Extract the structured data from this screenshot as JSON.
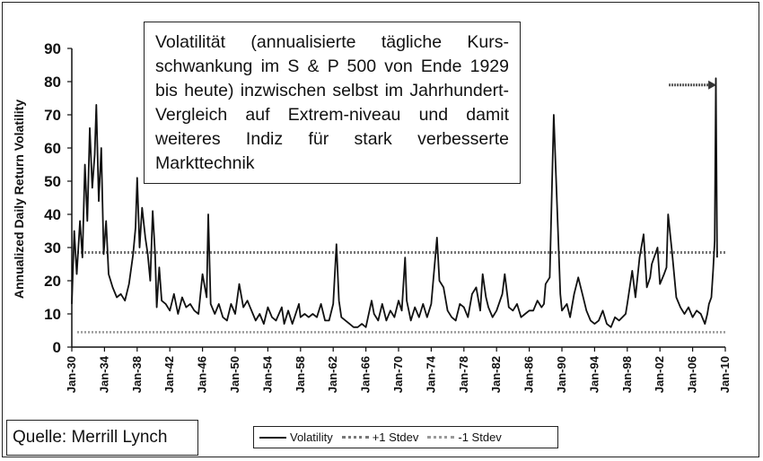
{
  "chart_data": {
    "type": "line",
    "ylabel": "Annualized Daily Return Volatility",
    "xlabel": "",
    "ylim": [
      0,
      90
    ],
    "yticks": [
      0,
      10,
      20,
      30,
      40,
      50,
      60,
      70,
      80,
      90
    ],
    "xlim": [
      1930,
      2010
    ],
    "xticks": [
      "Jan-30",
      "Jan-34",
      "Jan-38",
      "Jan-42",
      "Jan-46",
      "Jan-50",
      "Jan-54",
      "Jan-58",
      "Jan-62",
      "Jan-66",
      "Jan-70",
      "Jan-74",
      "Jan-78",
      "Jan-82",
      "Jan-86",
      "Jan-90",
      "Jan-94",
      "Jan-98",
      "Jan-02",
      "Jan-06",
      "Jan-10"
    ],
    "grid": false,
    "legend_position": "bottom",
    "series": [
      {
        "name": "Volatility",
        "color": "#111111",
        "x": [
          1930.0,
          1930.3,
          1930.6,
          1931.0,
          1931.3,
          1931.6,
          1931.9,
          1932.2,
          1932.5,
          1932.8,
          1933.0,
          1933.3,
          1933.6,
          1933.9,
          1934.2,
          1934.5,
          1935.0,
          1935.5,
          1936.0,
          1936.5,
          1937.0,
          1937.5,
          1937.8,
          1938.0,
          1938.3,
          1938.6,
          1939.0,
          1939.3,
          1939.6,
          1939.9,
          1940.2,
          1940.4,
          1940.7,
          1941.0,
          1941.5,
          1942.0,
          1942.5,
          1943.0,
          1943.5,
          1944.0,
          1944.5,
          1945.0,
          1945.5,
          1946.0,
          1946.5,
          1946.7,
          1947.0,
          1947.5,
          1948.0,
          1948.5,
          1949.0,
          1949.5,
          1950.0,
          1950.5,
          1951.0,
          1951.5,
          1952.0,
          1952.5,
          1953.0,
          1953.5,
          1954.0,
          1954.5,
          1955.0,
          1955.7,
          1956.0,
          1956.5,
          1957.0,
          1957.8,
          1958.0,
          1958.5,
          1959.0,
          1959.5,
          1960.0,
          1960.5,
          1961.0,
          1961.5,
          1962.0,
          1962.4,
          1962.7,
          1963.0,
          1963.5,
          1964.0,
          1964.5,
          1965.0,
          1965.5,
          1966.0,
          1966.7,
          1967.0,
          1967.5,
          1968.0,
          1968.5,
          1969.0,
          1969.5,
          1970.0,
          1970.4,
          1970.8,
          1971.0,
          1971.5,
          1972.0,
          1972.5,
          1973.0,
          1973.5,
          1974.0,
          1974.7,
          1975.0,
          1975.5,
          1976.0,
          1976.5,
          1977.0,
          1977.5,
          1978.0,
          1978.5,
          1979.0,
          1979.5,
          1980.0,
          1980.3,
          1980.7,
          1981.0,
          1981.5,
          1982.0,
          1982.7,
          1983.0,
          1983.5,
          1984.0,
          1984.5,
          1985.0,
          1985.5,
          1986.0,
          1986.5,
          1987.0,
          1987.5,
          1987.8,
          1988.0,
          1988.5,
          1989.0,
          1989.8,
          1990.0,
          1990.6,
          1991.0,
          1991.5,
          1992.0,
          1992.5,
          1993.0,
          1993.5,
          1994.0,
          1994.5,
          1995.0,
          1995.5,
          1996.0,
          1996.5,
          1997.0,
          1997.8,
          1998.0,
          1998.6,
          1999.0,
          1999.5,
          2000.0,
          2000.4,
          2000.8,
          2001.0,
          2001.7,
          2002.0,
          2002.5,
          2002.8,
          2003.0,
          2003.5,
          2004.0,
          2004.5,
          2005.0,
          2005.5,
          2006.0,
          2006.5,
          2007.0,
          2007.5,
          2007.8,
          2008.0,
          2008.3,
          2008.5,
          2008.7,
          2008.85,
          2009.0
        ],
        "values": [
          13,
          35,
          22,
          38,
          27,
          55,
          38,
          66,
          48,
          58,
          73,
          44,
          60,
          28,
          38,
          22,
          18,
          15,
          16,
          14,
          19,
          28,
          36,
          51,
          30,
          42,
          33,
          28,
          20,
          41,
          28,
          12,
          24,
          14,
          13,
          11,
          16,
          10,
          15,
          12,
          13,
          11,
          10,
          22,
          15,
          40,
          13,
          10,
          13,
          9,
          8,
          13,
          10,
          19,
          12,
          14,
          11,
          8,
          10,
          7,
          12,
          9,
          8,
          12,
          7,
          11,
          7,
          13,
          9,
          10,
          9,
          10,
          9,
          13,
          8,
          8,
          13,
          31,
          14,
          9,
          8,
          7,
          6,
          6,
          7,
          6,
          14,
          10,
          8,
          13,
          8,
          11,
          9,
          14,
          11,
          27,
          14,
          8,
          12,
          9,
          13,
          9,
          13,
          33,
          20,
          18,
          11,
          9,
          8,
          13,
          12,
          9,
          16,
          18,
          11,
          22,
          15,
          12,
          9,
          11,
          16,
          22,
          12,
          11,
          13,
          9,
          10,
          11,
          11,
          14,
          12,
          13,
          19,
          21,
          70,
          16,
          11,
          13,
          9,
          16,
          21,
          16,
          11,
          8,
          7,
          8,
          11,
          7,
          6,
          9,
          8,
          10,
          13,
          23,
          15,
          27,
          34,
          18,
          21,
          25,
          30,
          19,
          22,
          24,
          40,
          28,
          15,
          12,
          10,
          12,
          9,
          11,
          10,
          7,
          10,
          13,
          15,
          23,
          32,
          81,
          27
        ]
      },
      {
        "name": "+1 Stdev",
        "color": "#777777",
        "value": 28.5
      },
      {
        "name": "-1 Stdev",
        "color": "#999999",
        "value": 4.5
      }
    ],
    "annotations": [
      {
        "type": "arrow",
        "x": 2008.8,
        "y": 79
      }
    ]
  },
  "annotation_text": "Volatilität (annualisierte tägliche Kurs-schwankung im S & P 500 von Ende 1929 bis heute) inzwischen selbst im Jahrhundert-Vergleich auf Extrem-niveau und damit weiteres Indiz für stark verbesserte Markttechnik",
  "source_label": "Quelle: Merrill Lynch",
  "legend": {
    "items": [
      {
        "label": "Volatility"
      },
      {
        "label": "+1 Stdev"
      },
      {
        "label": "-1 Stdev"
      }
    ]
  }
}
